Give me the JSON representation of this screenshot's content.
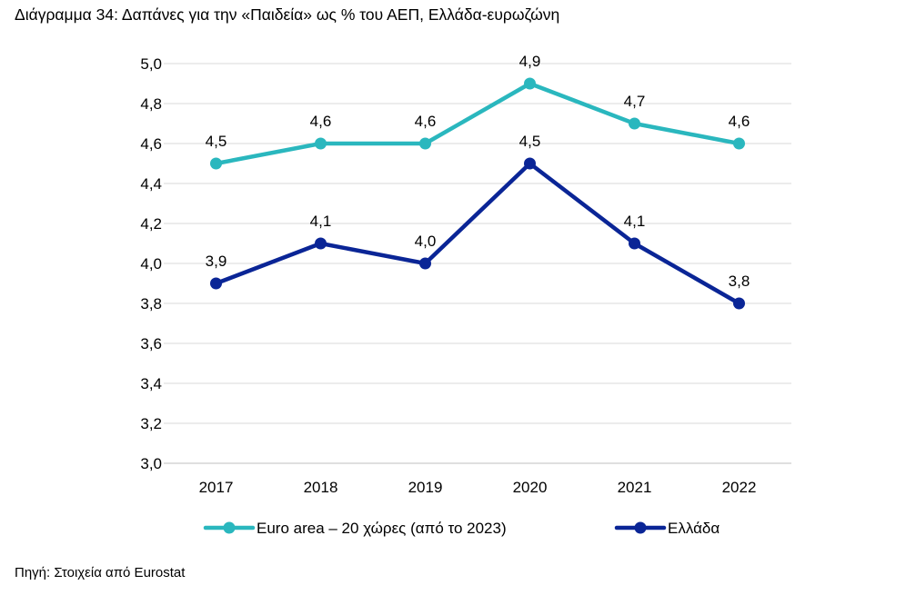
{
  "header": {
    "title": "Διάγραμμα 34: Δαπάνες για την «Παιδεία» ως % του ΑΕΠ, Ελλάδα-ευρωζώνη"
  },
  "footer": {
    "source": "Πηγή: Στοιχεία από Eurostat"
  },
  "chart_data": {
    "type": "line",
    "title": "Διάγραμμα 34: Δαπάνες για την «Παιδεία» ως % του ΑΕΠ, Ελλάδα-ευρωζώνη",
    "xlabel": "",
    "ylabel": "",
    "categories": [
      "2017",
      "2018",
      "2019",
      "2020",
      "2021",
      "2022"
    ],
    "ylim": [
      3.0,
      5.0
    ],
    "yticks": [
      "3,0",
      "3,2",
      "3,4",
      "3,6",
      "3,8",
      "4,0",
      "4,2",
      "4,4",
      "4,6",
      "4,8",
      "5,0"
    ],
    "grid": true,
    "legend_position": "bottom",
    "series": [
      {
        "name": "Euro area – 20 χώρες (από το 2023)",
        "values": [
          4.5,
          4.6,
          4.6,
          4.9,
          4.7,
          4.6
        ],
        "labels": [
          "4,5",
          "4,6",
          "4,6",
          "4,9",
          "4,7",
          "4,6"
        ],
        "color": "#2ab7be"
      },
      {
        "name": "Ελλάδα",
        "values": [
          3.9,
          4.1,
          4.0,
          4.5,
          4.1,
          3.8
        ],
        "labels": [
          "3,9",
          "4,1",
          "4,0",
          "4,5",
          "4,1",
          "3,8"
        ],
        "color": "#0a2596"
      }
    ]
  }
}
